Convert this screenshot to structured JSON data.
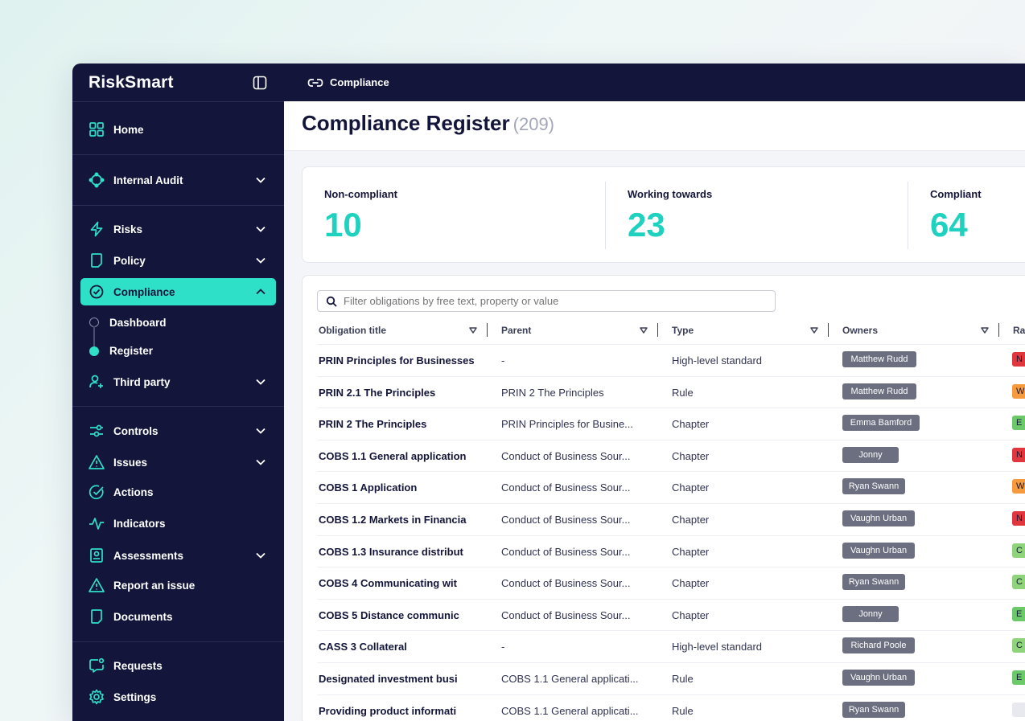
{
  "brand": "RiskSmart",
  "breadcrumb": "Compliance",
  "sidebar": {
    "items": [
      {
        "label": "Home",
        "icon": "grid-icon"
      },
      {
        "label": "Internal Audit",
        "icon": "audit-icon"
      },
      {
        "label": "Risks",
        "icon": "lightning-icon"
      },
      {
        "label": "Policy",
        "icon": "document-icon"
      },
      {
        "label": "Compliance",
        "icon": "check-circle-icon"
      },
      {
        "label": "Third party",
        "icon": "users-plus-icon"
      },
      {
        "label": "Controls",
        "icon": "toggle-icon"
      },
      {
        "label": "Issues",
        "icon": "warning-icon"
      },
      {
        "label": "Actions",
        "icon": "check-circle-icon"
      },
      {
        "label": "Indicators",
        "icon": "pulse-icon"
      },
      {
        "label": "Assessments",
        "icon": "clipboard-icon"
      },
      {
        "label": "Report an issue",
        "icon": "warning-icon"
      },
      {
        "label": "Documents",
        "icon": "document-icon"
      },
      {
        "label": "Requests",
        "icon": "chat-icon"
      },
      {
        "label": "Settings",
        "icon": "gear-icon"
      }
    ],
    "sub_items": [
      "Dashboard",
      "Register"
    ]
  },
  "page": {
    "title": "Compliance Register",
    "count": "(209)"
  },
  "stats": [
    {
      "label": "Non-compliant",
      "value": "10"
    },
    {
      "label": "Working towards",
      "value": "23"
    },
    {
      "label": "Compliant",
      "value": "64"
    }
  ],
  "filter": {
    "placeholder": "Filter obligations by free text, property or value"
  },
  "table": {
    "headers": [
      "Obligation title",
      "Parent",
      "Type",
      "Owners",
      "Ra"
    ],
    "rows": [
      {
        "title": "PRIN Principles for Businesses",
        "parent": "-",
        "type": "High-level standard",
        "owner": "Matthew Rudd",
        "rag": "N",
        "rag_color": "#e0363d"
      },
      {
        "title": "PRIN 2.1 The Principles",
        "parent": "PRIN 2 The Principles",
        "type": "Rule",
        "owner": "Matthew Rudd",
        "rag": "W",
        "rag_color": "#f59b3d"
      },
      {
        "title": "PRIN 2 The Principles",
        "parent": "PRIN Principles for Busine...",
        "type": "Chapter",
        "owner": "Emma Bamford",
        "rag": "E",
        "rag_color": "#6bc96a"
      },
      {
        "title": "COBS 1.1 General application",
        "parent": "Conduct of Business Sour...",
        "type": "Chapter",
        "owner": "Jonny",
        "rag": "N",
        "rag_color": "#e0363d"
      },
      {
        "title": "COBS 1 Application",
        "parent": "Conduct of Business Sour...",
        "type": "Chapter",
        "owner": "Ryan Swann",
        "rag": "W",
        "rag_color": "#f59b3d"
      },
      {
        "title": "COBS 1.2 Markets in Financia",
        "parent": "Conduct of Business Sour...",
        "type": "Chapter",
        "owner": "Vaughn Urban",
        "rag": "N",
        "rag_color": "#e0363d"
      },
      {
        "title": "COBS 1.3 Insurance distribut",
        "parent": "Conduct of Business Sour...",
        "type": "Chapter",
        "owner": "Vaughn Urban",
        "rag": "C",
        "rag_color": "#8fd47a"
      },
      {
        "title": "COBS 4 Communicating wit",
        "parent": "Conduct of Business Sour...",
        "type": "Chapter",
        "owner": "Ryan Swann",
        "rag": "C",
        "rag_color": "#8fd47a"
      },
      {
        "title": "COBS 5 Distance communic",
        "parent": "Conduct of Business Sour...",
        "type": "Chapter",
        "owner": "Jonny",
        "rag": "E",
        "rag_color": "#6bc96a"
      },
      {
        "title": "CASS 3 Collateral",
        "parent": "-",
        "type": "High-level standard",
        "owner": "Richard Poole",
        "rag": "C",
        "rag_color": "#8fd47a"
      },
      {
        "title": "Designated investment busi",
        "parent": "COBS 1.1 General applicati...",
        "type": "Rule",
        "owner": "Vaughn Urban",
        "rag": "E",
        "rag_color": "#6bc96a"
      },
      {
        "title": "Providing product informati",
        "parent": "COBS 1.1 General applicati...",
        "type": "Rule",
        "owner": "Ryan Swann",
        "rag": "",
        "rag_color": "#e8e9ee"
      }
    ]
  },
  "colors": {
    "navy": "#13163a",
    "accent": "#2ee0c8",
    "stat_value": "#1fd1bf"
  }
}
